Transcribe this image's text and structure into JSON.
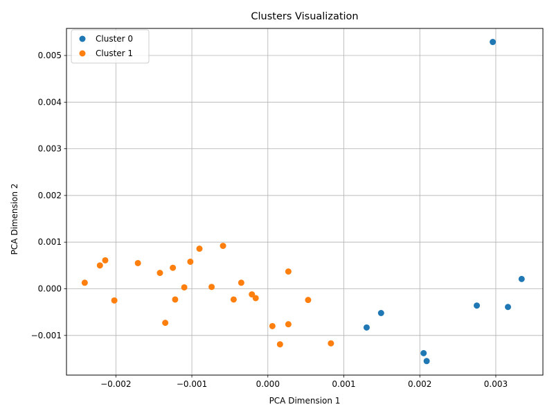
{
  "chart_data": {
    "type": "scatter",
    "title": "Clusters Visualization",
    "xlabel": "PCA Dimension 1",
    "ylabel": "PCA Dimension 2",
    "xlim": [
      -0.00265,
      0.00362
    ],
    "ylim": [
      -0.00185,
      0.00558
    ],
    "x_ticks": [
      -0.002,
      -0.001,
      0.0,
      0.001,
      0.002,
      0.003
    ],
    "x_tick_labels": [
      "−0.002",
      "−0.001",
      "0.000",
      "0.001",
      "0.002",
      "0.003"
    ],
    "y_ticks": [
      -0.001,
      0.0,
      0.001,
      0.002,
      0.003,
      0.004,
      0.005
    ],
    "y_tick_labels": [
      "−0.001",
      "0.000",
      "0.001",
      "0.002",
      "0.003",
      "0.004",
      "0.005"
    ],
    "grid": true,
    "legend_position": "top-left",
    "series": [
      {
        "name": "Cluster 0",
        "color": "#1f77b4",
        "points": [
          [
            0.00296,
            0.00529
          ],
          [
            0.00334,
            0.00021
          ],
          [
            0.00275,
            -0.00036
          ],
          [
            0.00316,
            -0.00039
          ],
          [
            0.00149,
            -0.00052
          ],
          [
            0.0013,
            -0.00083
          ],
          [
            0.00205,
            -0.00138
          ],
          [
            0.00209,
            -0.00155
          ]
        ]
      },
      {
        "name": "Cluster 1",
        "color": "#ff7f0e",
        "points": [
          [
            -0.00241,
            0.00013
          ],
          [
            -0.00221,
            0.0005
          ],
          [
            -0.00214,
            0.00061
          ],
          [
            -0.00202,
            -0.00025
          ],
          [
            -0.00171,
            0.00055
          ],
          [
            -0.00142,
            0.00034
          ],
          [
            -0.00135,
            -0.00073
          ],
          [
            -0.00125,
            0.00045
          ],
          [
            -0.00122,
            -0.00023
          ],
          [
            -0.0011,
            3e-05
          ],
          [
            -0.00102,
            0.00058
          ],
          [
            -0.0009,
            0.00086
          ],
          [
            -0.00074,
            4e-05
          ],
          [
            -0.00059,
            0.00092
          ],
          [
            -0.00045,
            -0.00023
          ],
          [
            -0.00035,
            0.00013
          ],
          [
            -0.00021,
            -0.00012
          ],
          [
            -0.00016,
            -0.0002
          ],
          [
            6e-05,
            -0.0008
          ],
          [
            0.00016,
            -0.00119
          ],
          [
            0.00027,
            -0.00076
          ],
          [
            0.00027,
            0.00037
          ],
          [
            0.00053,
            -0.00024
          ],
          [
            0.00083,
            -0.00117
          ]
        ]
      }
    ]
  }
}
